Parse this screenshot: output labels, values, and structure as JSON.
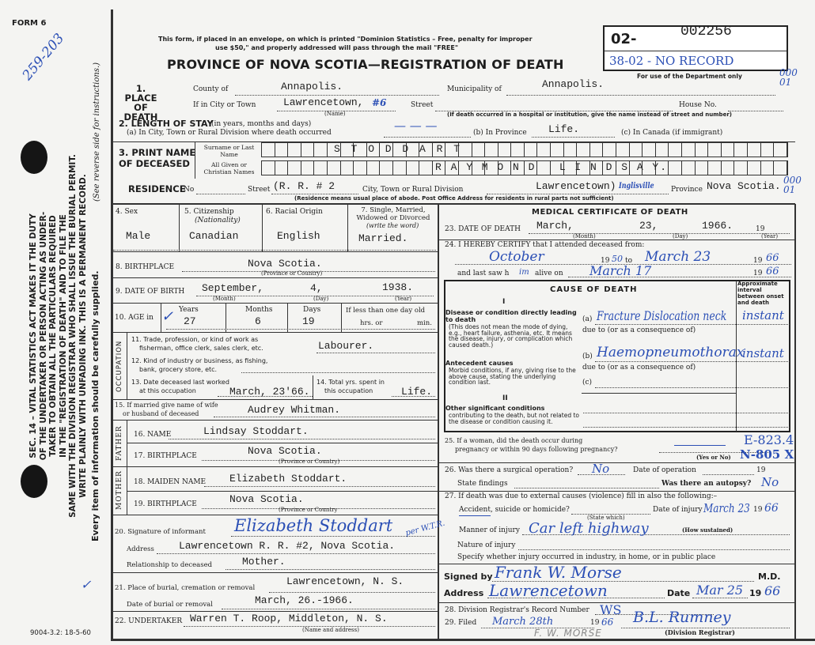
{
  "margin": {
    "form_no": "FORM 6",
    "handwritten_ref": "259-203",
    "statute": [
      "SEC. 14 – VITAL STATISTICS ACT MAKES IT THE DUTY",
      "OF THE UNDERTAKER OR PERSON ACTING AS UNDER-",
      "TAKER TO OBTAIN ALL THE PARTICULARS REQUIRED",
      "IN THE \"REGISTRATION OF DEATH\" AND TO FILE THE",
      "SAME WITH THE DIVISION REGISTRAR WHO SHALL ISSUE THE BURIAL PERMIT.",
      "WRITE PLAINLY WITH UNFADING INK. THIS IS A PERMANENT RECORD."
    ],
    "every_item": "Every item of information should be carefully supplied.",
    "see_reverse": "(See reverse side for instructions.)",
    "checkmark": "✓",
    "print_code": "9004-3.2: 18-5-60"
  },
  "header": {
    "notice_1": "This form, if placed in an envelope, on which is printed \"Dominion Statistics – Free, penalty for improper",
    "notice_2": "use $50,\" and properly addressed will pass through the mail \"FREE\"",
    "title": "PROVINCE OF NOVA SCOTIA—REGISTRATION OF DEATH",
    "reg_prefix": "02-",
    "reg_number": "002256",
    "reg_note": "38-02 - NO RECORD",
    "dept_only": "For use of the Department only",
    "margin_code_1": "000\n01",
    "margin_code_2": "000\n01"
  },
  "place": {
    "label": "1. PLACE OF DEATH",
    "county_label": "County of",
    "county": "Annapolis.",
    "municipality_label": "Municipality of",
    "municipality": "Annapolis.",
    "city_label": "If in City or Town",
    "city": "Lawrencetown,",
    "city_mark": "#6",
    "name_caption": "(Name)",
    "street_label": "Street",
    "house_label": "House No.",
    "hospital_note": "(If death occurred in a hospital or institution, give the name instead of street and number)"
  },
  "stay": {
    "label": "2. LENGTH OF STAY",
    "label_note": "(in years, months and days)",
    "a_label": "(a) In City, Town or Rural Division where death occurred",
    "a": "— — —",
    "b_label": "(b) In Province",
    "b": "Life.",
    "c_label": "(c) In Canada (if immigrant)"
  },
  "name": {
    "label_1": "3. PRINT NAME",
    "label_2": "OF DECEASED",
    "surname_label": "Surname or Last Name",
    "surname": "S T O D D A R T",
    "given_label": "All Given or Christian Names",
    "given": "R A Y M O N D   L I N D S A Y."
  },
  "residence": {
    "label": "RESIDENCE",
    "no_label": "No",
    "street_label": "Street",
    "street": "(R. R. # 2",
    "city_label": "City, Town or Rural Division",
    "city": "Lawrencetown)",
    "city_hw": "Inglisville",
    "province_label": "Province",
    "province": "Nova Scotia.",
    "note": "(Residence means usual place of abode. Post Office Address for residents in rural parts not sufficient)"
  },
  "personal": {
    "sex_label": "4. Sex",
    "sex": "Male",
    "citizenship_label": "5. Citizenship",
    "citizenship_sub": "(Nationality)",
    "citizenship": "Canadian",
    "racial_label": "6. Racial Origin",
    "racial": "English",
    "marital_label": "7. Single, Married, Widowed or Divorced",
    "marital_sub": "(write the word)",
    "marital": "Married.",
    "birthplace_label": "8. BIRTHPLACE",
    "birthplace": "Nova Scotia.",
    "birthplace_caption": "(Province or Country)",
    "dob_label": "9. DATE OF BIRTH",
    "dob_month": "September,",
    "dob_day": "4,",
    "dob_year": "1938.",
    "month_caption": "(Month)",
    "day_caption": "(Day)",
    "year_caption": "(Year)",
    "age_label": "10. AGE in",
    "years_label": "Years",
    "years": "27",
    "months_label": "Months",
    "months": "6",
    "days_label": "Days",
    "days": "19",
    "less_label": "If less than one day old",
    "hrs_label": "hrs. or",
    "min_label": "min."
  },
  "occupation": {
    "side_label": "OCCUPATION",
    "trade_label_1": "11. Trade, profession, or kind of work as",
    "trade_label_2": "fisherman, office clerk, sales clerk, etc.",
    "trade": "Labourer.",
    "industry_label_1": "12. Kind of industry or business, as fishing,",
    "industry_label_2": "bank, grocery store, etc.",
    "last_worked_label_1": "13. Date deceased last worked",
    "last_worked_label_2": "at this occupation",
    "last_worked": "March, 23'66.",
    "total_label_1": "14. Total yrs. spent in",
    "total_label_2": "this occupation",
    "total": "Life."
  },
  "spouse": {
    "label_1": "15. If married give name of wife",
    "label_2": "or husband of deceased",
    "value": "Audrey Whitman."
  },
  "father": {
    "side_label": "FATHER",
    "name_label": "16. NAME",
    "name": "Lindsay Stoddart.",
    "birthplace_label": "17. BIRTHPLACE",
    "birthplace": "Nova Scotia.",
    "caption": "(Province or Country)"
  },
  "mother": {
    "side_label": "MOTHER",
    "name_label": "18. MAIDEN NAME",
    "name": "Elizabeth Stoddart.",
    "birthplace_label": "19. BIRTHPLACE",
    "birthplace": "Nova Scotia.",
    "caption": "(Province or Country"
  },
  "informant": {
    "sig_label": "20. Signature of informant",
    "signature": "Elizabeth Stoddart",
    "sig_per": "per W.T.R.",
    "address_label": "Address",
    "address": "Lawrencetown R. R. #2, Nova Scotia.",
    "relation_label": "Relationship to deceased",
    "relation": "Mother."
  },
  "burial": {
    "place_label": "21. Place of burial, cremation or removal",
    "place": "Lawrencetown, N. S.",
    "date_label": "Date of burial or removal",
    "date": "March, 26.-1966."
  },
  "undertaker": {
    "label": "22. UNDERTAKER",
    "value": "Warren T. Roop, Middleton, N. S.",
    "caption": "(Name and address)"
  },
  "medical": {
    "title": "MEDICAL CERTIFICATE OF DEATH",
    "dod_label": "23. DATE OF DEATH",
    "dod_month": "March,",
    "dod_day": "23,",
    "dod_year": "1966.",
    "year_prefix": "19",
    "month_caption": "(Month)",
    "day_caption": "(Day)",
    "year_caption": "(Year)",
    "certify_label": "24. I HEREBY CERTIFY that I attended deceased from:",
    "from": "October",
    "from_year": "50",
    "to_label": "to",
    "to": "March 23",
    "to_year": "66",
    "last_saw_label": "and last saw h",
    "last_saw_him": "im",
    "alive_label": "alive on",
    "last_saw": "March 17",
    "last_saw_year": "66"
  },
  "cause": {
    "title": "CAUSE OF DEATH",
    "interval_header": "Approximate interval between onset and death",
    "part1": "I",
    "part2": "II",
    "direct_title": "Disease or condition directly leading to death",
    "direct_note": "(This does not mean the mode of dying, e.g., heart failure, asthenia, etc. It means the disease, injury, or complication which caused death.)",
    "antecedent_title": "Antecedent causes",
    "antecedent_note": "Morbid conditions, if any, giving rise to the above cause, stating the underlying condition last.",
    "other_title": "Other significant conditions",
    "other_note": "contributing to the death, but not related to the disease or condition causing it.",
    "a_label": "(a)",
    "a": "Fracture Dislocation neck",
    "a_interval": "instant",
    "due_to": "due to (or as a consequence of)",
    "b_label": "(b)",
    "b": "Haemopneumothorax",
    "b_interval": "instant",
    "c_label": "(c)"
  },
  "pregnancy": {
    "label_1": "25. If a woman, did the death occur during",
    "label_2": "pregnancy or within 90 days following pregnancy?",
    "caption": "(Yes or No)",
    "code_1": "E-823.4",
    "code_2": "N-805 X"
  },
  "operation": {
    "label": "26. Was there a surgical operation?",
    "value": "No",
    "date_label": "Date of operation",
    "year_prefix": "19",
    "findings_label": "State findings",
    "autopsy_label": "Was there an autopsy?",
    "autopsy": "No"
  },
  "external": {
    "label": "27. If death was due to external causes (violence) fill in also the following:–",
    "accident_label": "Accident, suicide or homicide?",
    "state_caption": "(State which)",
    "injury_date_label": "Date of injury",
    "injury_date": "March 23",
    "year_prefix": "19",
    "injury_year": "66",
    "manner_label": "Manner of injury",
    "manner": "Car left highway",
    "how_caption": "(How sustained)",
    "nature_label": "Nature of injury",
    "where_label": "Specify whether injury occurred in industry, in home, or in public place"
  },
  "signature": {
    "signed_label": "Signed by",
    "signed": "Frank W. Morse",
    "md": "M.D.",
    "address_label": "Address",
    "address": "Lawrencetown",
    "date_label": "Date",
    "date": "Mar 25",
    "year_prefix": "19",
    "year": "66"
  },
  "registrar": {
    "record_label": "28. Division Registrar's Record Number",
    "record": "WS",
    "filed_label": "29. Filed",
    "filed": "March 28th",
    "year_prefix": "19",
    "filed_year": "66",
    "registrar_sig": "B.L. Rumney",
    "registrar_caption": "(Division Registrar)",
    "pencil_note": "F. W. MORSE"
  }
}
